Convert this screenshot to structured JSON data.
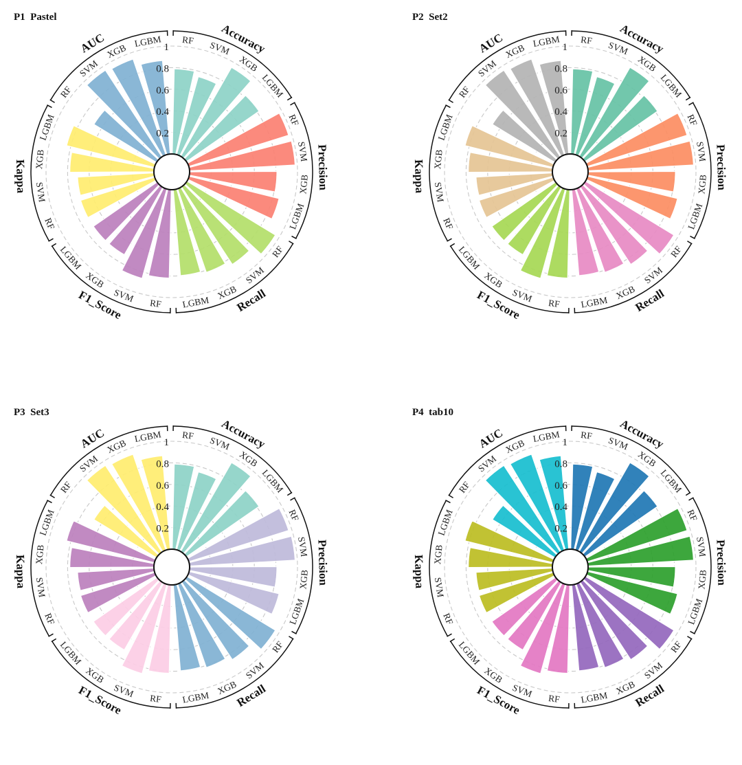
{
  "chart_data": [
    {
      "type": "bar",
      "subtype": "circular-grouped-bar",
      "panel_label": "P1",
      "palette_name": "Pastel",
      "metrics": [
        "Accuracy",
        "Precision",
        "Recall",
        "F1_Score",
        "Kappa",
        "AUC"
      ],
      "models": [
        "RF",
        "SVM",
        "XGB",
        "LGBM"
      ],
      "colors": [
        "#8dd3c7",
        "#fb8072",
        "#b3de69",
        "#bc80bd",
        "#ffed6f",
        "#80b1d3"
      ],
      "values": {
        "Accuracy": [
          0.79,
          0.75,
          0.95,
          0.82
        ],
        "Precision": [
          0.97,
          0.98,
          0.81,
          0.86
        ],
        "Recall": [
          0.96,
          0.86,
          0.82,
          0.8
        ],
        "F1_Score": [
          0.82,
          0.86,
          0.72,
          0.72
        ],
        "Kappa": [
          0.72,
          0.71,
          0.78,
          0.84
        ],
        "AUC": [
          0.68,
          0.96,
          0.94,
          0.87
        ]
      },
      "rlim": [
        0,
        1
      ],
      "radial_ticks": [
        0.2,
        0.4,
        0.6,
        0.8,
        1
      ],
      "radial_tick_labels": [
        "0.2",
        "0.4",
        "0.6",
        "0.8",
        "1"
      ]
    },
    {
      "type": "bar",
      "subtype": "circular-grouped-bar",
      "panel_label": "P2",
      "palette_name": "Set2",
      "metrics": [
        "Accuracy",
        "Precision",
        "Recall",
        "F1_Score",
        "Kappa",
        "AUC"
      ],
      "models": [
        "RF",
        "SVM",
        "XGB",
        "LGBM"
      ],
      "colors": [
        "#66c2a5",
        "#fc8d62",
        "#e78ac3",
        "#a6d854",
        "#e5c494",
        "#b3b3b3"
      ],
      "values": {
        "Accuracy": [
          0.79,
          0.75,
          0.95,
          0.82
        ],
        "Precision": [
          0.97,
          0.98,
          0.81,
          0.86
        ],
        "Recall": [
          0.96,
          0.86,
          0.82,
          0.8
        ],
        "F1_Score": [
          0.82,
          0.86,
          0.72,
          0.72
        ],
        "Kappa": [
          0.72,
          0.71,
          0.78,
          0.84
        ],
        "AUC": [
          0.68,
          0.96,
          0.94,
          0.87
        ]
      },
      "rlim": [
        0,
        1
      ],
      "radial_ticks": [
        0.2,
        0.4,
        0.6,
        0.8,
        1
      ],
      "radial_tick_labels": [
        "0.2",
        "0.4",
        "0.6",
        "0.8",
        "1"
      ]
    },
    {
      "type": "bar",
      "subtype": "circular-grouped-bar",
      "panel_label": "P3",
      "palette_name": "Set3",
      "metrics": [
        "Accuracy",
        "Precision",
        "Recall",
        "F1_Score",
        "Kappa",
        "AUC"
      ],
      "models": [
        "RF",
        "SVM",
        "XGB",
        "LGBM"
      ],
      "colors": [
        "#8dd3c7",
        "#bebada",
        "#80b1d3",
        "#fccde5",
        "#bc80bd",
        "#ffed6f"
      ],
      "values": {
        "Accuracy": [
          0.79,
          0.75,
          0.95,
          0.82
        ],
        "Precision": [
          0.97,
          0.98,
          0.81,
          0.86
        ],
        "Recall": [
          0.96,
          0.86,
          0.82,
          0.8
        ],
        "F1_Score": [
          0.82,
          0.86,
          0.72,
          0.72
        ],
        "Kappa": [
          0.72,
          0.71,
          0.78,
          0.84
        ],
        "AUC": [
          0.68,
          0.96,
          0.94,
          0.87
        ]
      },
      "rlim": [
        0,
        1
      ],
      "radial_ticks": [
        0.2,
        0.4,
        0.6,
        0.8,
        1
      ],
      "radial_tick_labels": [
        "0.2",
        "0.4",
        "0.6",
        "0.8",
        "1"
      ]
    },
    {
      "type": "bar",
      "subtype": "circular-grouped-bar",
      "panel_label": "P4",
      "palette_name": "tab10",
      "metrics": [
        "Accuracy",
        "Precision",
        "Recall",
        "F1_Score",
        "Kappa",
        "AUC"
      ],
      "models": [
        "RF",
        "SVM",
        "XGB",
        "LGBM"
      ],
      "colors": [
        "#1f77b4",
        "#2ca02c",
        "#9467bd",
        "#e377c2",
        "#bcbd22",
        "#17becf"
      ],
      "values": {
        "Accuracy": [
          0.79,
          0.75,
          0.95,
          0.82
        ],
        "Precision": [
          0.97,
          0.98,
          0.81,
          0.86
        ],
        "Recall": [
          0.96,
          0.86,
          0.82,
          0.8
        ],
        "F1_Score": [
          0.82,
          0.86,
          0.72,
          0.72
        ],
        "Kappa": [
          0.72,
          0.71,
          0.78,
          0.84
        ],
        "AUC": [
          0.68,
          0.96,
          0.94,
          0.87
        ]
      },
      "rlim": [
        0,
        1
      ],
      "radial_ticks": [
        0.2,
        0.4,
        0.6,
        0.8,
        1
      ],
      "radial_tick_labels": [
        "0.2",
        "0.4",
        "0.6",
        "0.8",
        "1"
      ]
    }
  ]
}
